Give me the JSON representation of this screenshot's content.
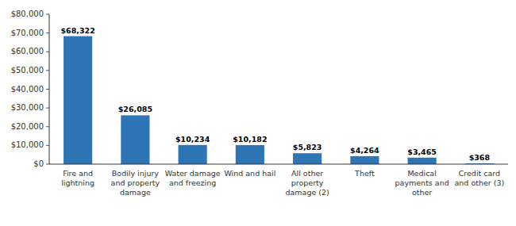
{
  "chart_data": {
    "type": "bar",
    "categories": [
      "Fire and\nlightning",
      "Bodily injury\nand property\ndamage",
      "Water damage\nand freezing",
      "Wind and hail",
      "All other\nproperty\ndamage (2)",
      "Theft",
      "Medical\npayments and\nother",
      "Credit card\nand other (3)"
    ],
    "values": [
      68322,
      26085,
      10234,
      10182,
      5823,
      4264,
      3465,
      368
    ],
    "value_labels": [
      "$68,322",
      "$26,085",
      "$10,234",
      "$10,182",
      "$5,823",
      "$4,264",
      "$3,465",
      "$368"
    ],
    "data_labels": true,
    "color": "#2E75B6",
    "ylim": [
      0,
      80000
    ],
    "yticks": [
      {
        "value": 0,
        "label": "$0"
      },
      {
        "value": 10000,
        "label": "$10,000"
      },
      {
        "value": 20000,
        "label": "$20,000"
      },
      {
        "value": 30000,
        "label": "$30,000"
      },
      {
        "value": 40000,
        "label": "$40,000"
      },
      {
        "value": 50000,
        "label": "$50,000"
      },
      {
        "value": 60000,
        "label": "$60,000"
      },
      {
        "value": 70000,
        "label": "$70,000"
      },
      {
        "value": 80000,
        "label": "$80,000"
      }
    ],
    "grid": false
  }
}
